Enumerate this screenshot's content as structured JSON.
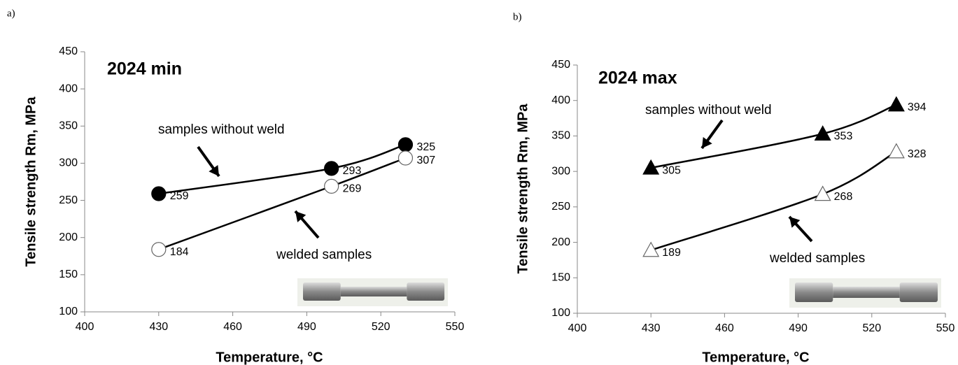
{
  "chart_data": [
    {
      "type": "line",
      "panel": "a)",
      "title": "2024 min",
      "x_label": "Temperature, °C",
      "y_label": "Tensile strength Rm, MPa",
      "x": [
        430,
        500,
        530
      ],
      "series": [
        {
          "name": "samples without weld",
          "color": "#000000",
          "marker": "circle",
          "filled": true,
          "values": [
            259,
            293,
            325
          ]
        },
        {
          "name": "welded samples",
          "color": "#000000",
          "marker": "circle",
          "filled": false,
          "values": [
            184,
            269,
            307
          ]
        }
      ],
      "xlim": [
        400,
        550
      ],
      "xticks": [
        400,
        430,
        460,
        490,
        520,
        550
      ],
      "ylim": [
        100,
        450
      ],
      "yticks": [
        100,
        150,
        200,
        250,
        300,
        350,
        400,
        450
      ],
      "grid": false
    },
    {
      "type": "line",
      "panel": "b)",
      "title": "2024 max",
      "x_label": "Temperature, °C",
      "y_label": "Tensile strength Rm, MPa",
      "x": [
        430,
        500,
        530
      ],
      "series": [
        {
          "name": "samples without weld",
          "color": "#000000",
          "marker": "triangle",
          "filled": true,
          "values": [
            305,
            353,
            394
          ]
        },
        {
          "name": "welded samples",
          "color": "#000000",
          "marker": "triangle",
          "filled": false,
          "values": [
            189,
            268,
            328
          ]
        }
      ],
      "xlim": [
        400,
        550
      ],
      "xticks": [
        400,
        430,
        460,
        490,
        520,
        550
      ],
      "ylim": [
        100,
        450
      ],
      "yticks": [
        100,
        150,
        200,
        250,
        300,
        350,
        400,
        450
      ],
      "grid": false
    }
  ]
}
